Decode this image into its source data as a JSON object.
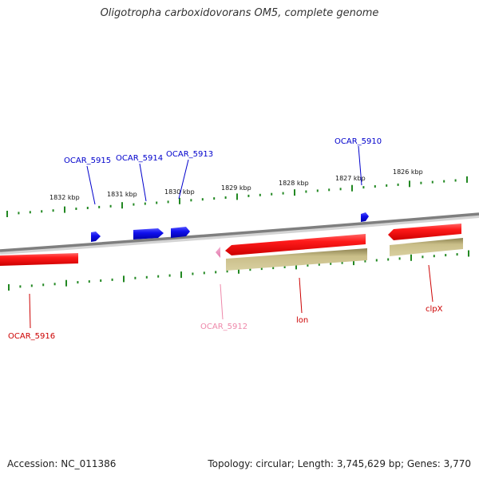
{
  "title": "Oligotropha carboxidovorans OM5, complete genome",
  "footer": {
    "accession": "Accession: NC_011386",
    "summary": "Topology: circular; Length: 3,745,629 bp; Genes: 3,770"
  },
  "colors": {
    "cds_red": "#ee1111",
    "cds_blue": "#1111ee",
    "rna_pink": "#ee88bb",
    "gene_olive": "#bbb075",
    "backbone": "#888888",
    "ticks": "#228822",
    "label_blue": "#0000cc",
    "label_red": "#cc0000",
    "label_pink": "#ee88aa"
  },
  "scale_labels": [
    "1832 kbp",
    "1831 kbp",
    "1830 kbp",
    "1829 kbp",
    "1828 kbp",
    "1827 kbp",
    "1826 kbp"
  ],
  "genes": [
    {
      "label": "OCAR_5915",
      "color": "label_blue"
    },
    {
      "label": "OCAR_5914",
      "color": "label_blue"
    },
    {
      "label": "OCAR_5913",
      "color": "label_blue"
    },
    {
      "label": "OCAR_5910",
      "color": "label_blue"
    },
    {
      "label": "OCAR_5916",
      "color": "label_red"
    },
    {
      "label": "OCAR_5912",
      "color": "label_pink"
    },
    {
      "label": "lon",
      "color": "label_red"
    },
    {
      "label": "clpX",
      "color": "label_red"
    }
  ]
}
